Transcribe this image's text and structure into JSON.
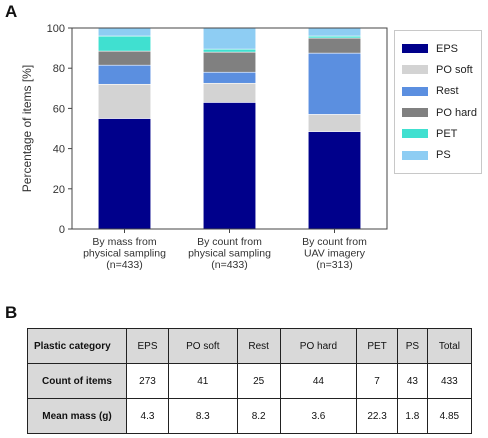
{
  "panel_labels": {
    "a": "A",
    "b": "B"
  },
  "chart_data": {
    "type": "bar",
    "stacked": true,
    "categories": [
      [
        "By mass from",
        "physical sampling",
        "(n=433)"
      ],
      [
        "By count from",
        "physical sampling",
        "(n=433)"
      ],
      [
        "By count from",
        "UAV imagery",
        "(n=313)"
      ]
    ],
    "ylabel": "Percentage of items [%]",
    "ylim": [
      0,
      100
    ],
    "yticks": [
      0,
      20,
      40,
      60,
      80,
      100
    ],
    "legend_position": "right",
    "series": [
      {
        "name": "EPS",
        "color": "#00008b",
        "values": [
          55,
          63,
          48.5
        ]
      },
      {
        "name": "PO soft",
        "color": "#d3d3d3",
        "values": [
          17,
          9.5,
          8.5
        ]
      },
      {
        "name": "Rest",
        "color": "#5b8fe0",
        "values": [
          9.5,
          5.5,
          30.5
        ]
      },
      {
        "name": "PO hard",
        "color": "#808080",
        "values": [
          7,
          10,
          7.5
        ]
      },
      {
        "name": "PET",
        "color": "#40e0d0",
        "values": [
          7.5,
          1.5,
          1
        ]
      },
      {
        "name": "PS",
        "color": "#8ecdf3",
        "values": [
          4,
          10.5,
          4
        ]
      }
    ]
  },
  "table": {
    "header": [
      "Plastic category",
      "EPS",
      "PO soft",
      "Rest",
      "PO hard",
      "PET",
      "PS",
      "Total"
    ],
    "rows": [
      {
        "label": "Count of items",
        "values": [
          "273",
          "41",
          "25",
          "44",
          "7",
          "43",
          "433"
        ]
      },
      {
        "label": "Mean mass (g)",
        "values": [
          "4.3",
          "8.3",
          "8.2",
          "3.6",
          "22.3",
          "1.8",
          "4.85"
        ]
      }
    ]
  }
}
